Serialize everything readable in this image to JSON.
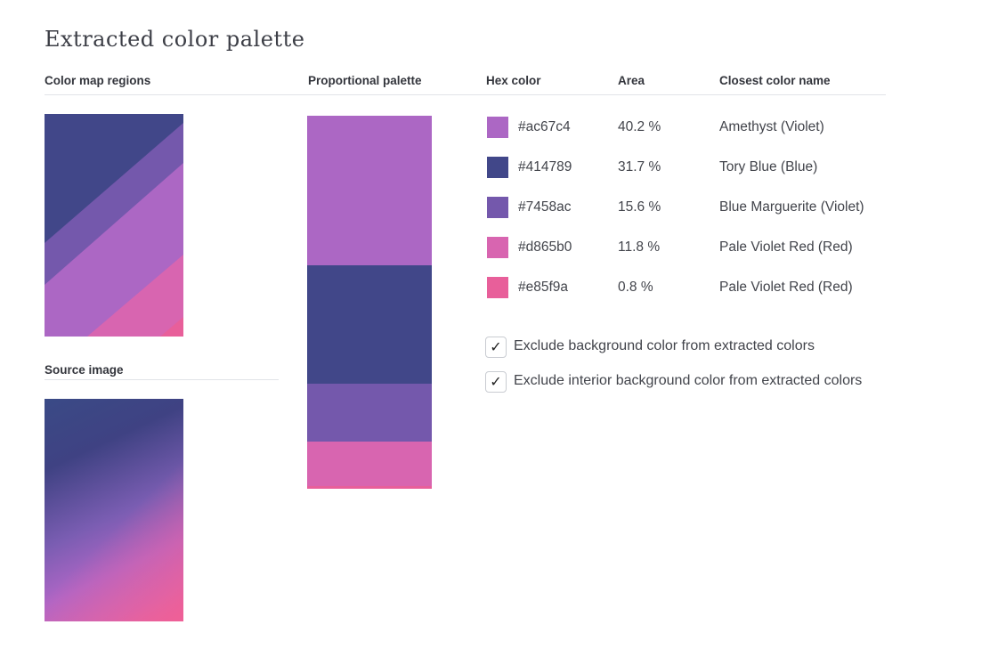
{
  "page": {
    "title": "Extracted color palette"
  },
  "sections": {
    "color_map_regions": "Color map regions",
    "source_image": "Source image",
    "proportional_palette": "Proportional palette"
  },
  "table": {
    "headers": {
      "hex": "Hex color",
      "area": "Area",
      "name": "Closest color name"
    },
    "rows": [
      {
        "hex": "#ac67c4",
        "area": "40.2 %",
        "name": "Amethyst (Violet)",
        "color": "#ac67c4",
        "fraction": 0.402
      },
      {
        "hex": "#414789",
        "area": "31.7 %",
        "name": "Tory Blue (Blue)",
        "color": "#414789",
        "fraction": 0.317
      },
      {
        "hex": "#7458ac",
        "area": "15.6 %",
        "name": "Blue Marguerite (Violet)",
        "color": "#7458ac",
        "fraction": 0.156
      },
      {
        "hex": "#d865b0",
        "area": "11.8 %",
        "name": "Pale Violet Red (Red)",
        "color": "#d865b0",
        "fraction": 0.118
      },
      {
        "hex": "#e85f9a",
        "area": "0.8 %",
        "name": "Pale Violet Red (Red)",
        "color": "#e85f9a",
        "fraction": 0.008
      }
    ]
  },
  "options": {
    "exclude_background": {
      "label": "Exclude background color from extracted colors",
      "checked": true,
      "mark": "✓"
    },
    "exclude_interior_background": {
      "label": "Exclude interior background color from extracted colors",
      "checked": true,
      "mark": "✓"
    }
  }
}
